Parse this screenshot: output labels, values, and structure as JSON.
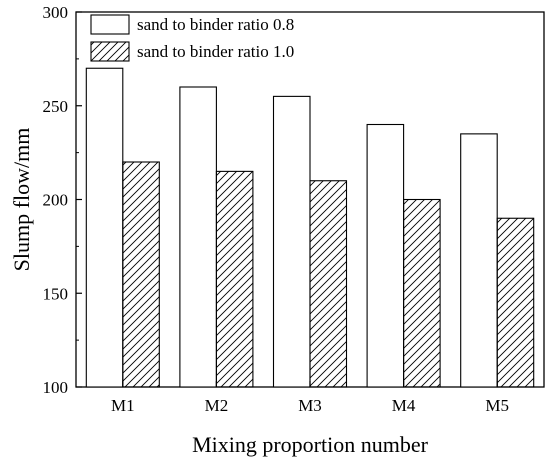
{
  "chart_data": {
    "type": "bar",
    "title": "",
    "xlabel": "Mixing proportion number",
    "ylabel": "Slump flow/mm",
    "categories": [
      "M1",
      "M2",
      "M3",
      "M4",
      "M5"
    ],
    "series": [
      {
        "name": "sand to binder ratio 0.8",
        "values": [
          270,
          260,
          255,
          240,
          235
        ],
        "fill": "white"
      },
      {
        "name": "sand to binder ratio 1.0",
        "values": [
          220,
          215,
          210,
          200,
          190
        ],
        "fill": "diagonal-hatch"
      }
    ],
    "ylim": [
      100,
      300
    ],
    "yticks": [
      100,
      150,
      200,
      250,
      300
    ],
    "grid": false,
    "legend_position": "top-left"
  }
}
